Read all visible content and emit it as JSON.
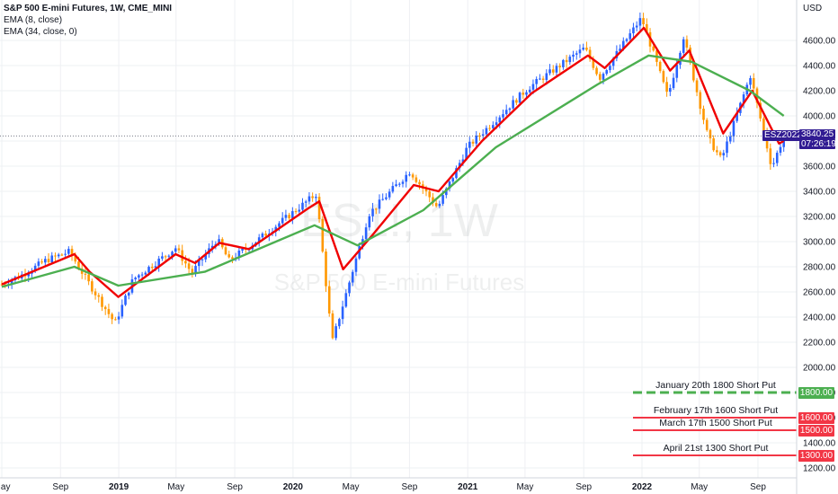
{
  "header": {
    "symbol_line": "S&P 500 E-mini Futures, 1W, CME_MINI",
    "ema8_label": "EMA (8, close)",
    "ema34_label": "EMA (34, close, 0)",
    "currency": "USD"
  },
  "watermark": {
    "symbol": "ES1!, 1W",
    "name": "S&P 500 E-mini Futures"
  },
  "last_price": {
    "symbol": "ESZ2022",
    "price": "3840.25",
    "countdown": "07:26:19"
  },
  "price_levels": [
    {
      "label": "January 20th 1800 Short Put",
      "price": 1800,
      "tag": "1800.00",
      "color": "#4caf50",
      "style": "dashed"
    },
    {
      "label": "February 17th 1600 Short Put",
      "price": 1600,
      "tag": "1600.00",
      "color": "#f23645",
      "style": "solid"
    },
    {
      "label": "March 17th 1500 Short Put",
      "price": 1500,
      "tag": "1500.00",
      "color": "#f23645",
      "style": "solid"
    },
    {
      "label": "April 21st 1300 Short Put",
      "price": 1300,
      "tag": "1300.00",
      "color": "#f23645",
      "style": "solid"
    }
  ],
  "colors": {
    "up": "#2962ff",
    "down": "#ff9800",
    "ema8": "#f00000",
    "ema34": "#4caf50",
    "grid": "#eef0f3",
    "last_price": "#311b92",
    "last_price_line": "#f23645"
  },
  "chart_data": {
    "type": "candlestick",
    "x_axis": {
      "type": "date",
      "labels": [
        "May",
        "Sep",
        "2019",
        "May",
        "Sep",
        "2020",
        "May",
        "Sep",
        "2021",
        "May",
        "Sep",
        "2022",
        "May",
        "Sep"
      ],
      "range": [
        "2018-05-01",
        "2022-11-30"
      ]
    },
    "y_axis": {
      "min": 1200,
      "max": 4800,
      "ticks": [
        1200,
        1400,
        1600,
        1800,
        2000,
        2200,
        2400,
        2600,
        2800,
        3000,
        3200,
        3400,
        3600,
        3800,
        4000,
        4200,
        4400,
        4600
      ],
      "unit": "USD"
    },
    "series": [
      {
        "name": "ES1!",
        "type": "weekly-close-approx",
        "points": [
          [
            "2018-05-01",
            2660
          ],
          [
            "2018-06-15",
            2740
          ],
          [
            "2018-08-01",
            2850
          ],
          [
            "2018-09-20",
            2920
          ],
          [
            "2018-10-25",
            2700
          ],
          [
            "2018-12-24",
            2350
          ],
          [
            "2019-01-31",
            2700
          ],
          [
            "2019-04-30",
            2950
          ],
          [
            "2019-06-03",
            2750
          ],
          [
            "2019-07-26",
            3020
          ],
          [
            "2019-08-20",
            2850
          ],
          [
            "2019-10-15",
            3000
          ],
          [
            "2019-12-31",
            3230
          ],
          [
            "2020-02-19",
            3380
          ],
          [
            "2020-03-23",
            2200
          ],
          [
            "2020-06-08",
            3220
          ],
          [
            "2020-09-02",
            3560
          ],
          [
            "2020-10-30",
            3270
          ],
          [
            "2020-12-31",
            3750
          ],
          [
            "2021-05-07",
            4220
          ],
          [
            "2021-09-03",
            4540
          ],
          [
            "2021-10-04",
            4300
          ],
          [
            "2021-12-31",
            4780
          ],
          [
            "2022-02-24",
            4150
          ],
          [
            "2022-03-29",
            4630
          ],
          [
            "2022-05-20",
            3820
          ],
          [
            "2022-06-16",
            3650
          ],
          [
            "2022-08-16",
            4320
          ],
          [
            "2022-09-30",
            3590
          ],
          [
            "2022-10-25",
            3840
          ]
        ]
      },
      {
        "name": "EMA (8, close)",
        "points": [
          [
            "2018-05-01",
            2660
          ],
          [
            "2018-09-30",
            2900
          ],
          [
            "2018-11-01",
            2760
          ],
          [
            "2018-12-31",
            2560
          ],
          [
            "2019-04-30",
            2900
          ],
          [
            "2019-06-10",
            2830
          ],
          [
            "2019-07-31",
            2990
          ],
          [
            "2019-10-01",
            2940
          ],
          [
            "2020-01-31",
            3260
          ],
          [
            "2020-02-25",
            3320
          ],
          [
            "2020-04-15",
            2780
          ],
          [
            "2020-06-15",
            3050
          ],
          [
            "2020-09-10",
            3450
          ],
          [
            "2020-11-01",
            3400
          ],
          [
            "2021-01-31",
            3800
          ],
          [
            "2021-05-15",
            4180
          ],
          [
            "2021-09-10",
            4480
          ],
          [
            "2021-10-15",
            4380
          ],
          [
            "2022-01-05",
            4700
          ],
          [
            "2022-03-01",
            4360
          ],
          [
            "2022-04-10",
            4520
          ],
          [
            "2022-06-20",
            3860
          ],
          [
            "2022-08-20",
            4200
          ],
          [
            "2022-10-15",
            3780
          ],
          [
            "2022-10-25",
            3800
          ]
        ]
      },
      {
        "name": "EMA (34, close, 0)",
        "points": [
          [
            "2018-05-01",
            2640
          ],
          [
            "2018-09-30",
            2800
          ],
          [
            "2018-12-31",
            2650
          ],
          [
            "2019-06-30",
            2760
          ],
          [
            "2020-02-15",
            3130
          ],
          [
            "2020-05-15",
            2970
          ],
          [
            "2020-09-30",
            3250
          ],
          [
            "2021-03-01",
            3750
          ],
          [
            "2021-09-30",
            4250
          ],
          [
            "2022-01-15",
            4480
          ],
          [
            "2022-04-15",
            4430
          ],
          [
            "2022-08-15",
            4200
          ],
          [
            "2022-10-25",
            4000
          ]
        ]
      }
    ]
  }
}
